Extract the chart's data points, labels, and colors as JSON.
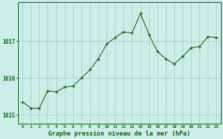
{
  "x": [
    0,
    1,
    2,
    3,
    4,
    5,
    6,
    7,
    8,
    9,
    10,
    11,
    12,
    13,
    14,
    15,
    16,
    17,
    18,
    19,
    20,
    21,
    22,
    23
  ],
  "y": [
    1015.35,
    1015.18,
    1015.18,
    1015.65,
    1015.62,
    1015.75,
    1015.78,
    1016.0,
    1016.22,
    1016.52,
    1016.92,
    1017.1,
    1017.25,
    1017.22,
    1017.75,
    1017.18,
    1016.72,
    1016.52,
    1016.38,
    1016.58,
    1016.82,
    1016.85,
    1017.12,
    1017.1
  ],
  "line_color": "#1a5c1a",
  "marker_color": "#1a5c1a",
  "bg_color": "#cceee8",
  "grid_color": "#99ccbb",
  "xlabel": "Graphe pression niveau de la mer (hPa)",
  "xlabel_color": "#1a5c1a",
  "ylabel_ticks": [
    1015,
    1016,
    1017
  ],
  "ylim": [
    1014.75,
    1018.05
  ],
  "xlim": [
    -0.5,
    23.5
  ],
  "tick_color": "#1a5c1a",
  "border_color": "#1a5c1a"
}
